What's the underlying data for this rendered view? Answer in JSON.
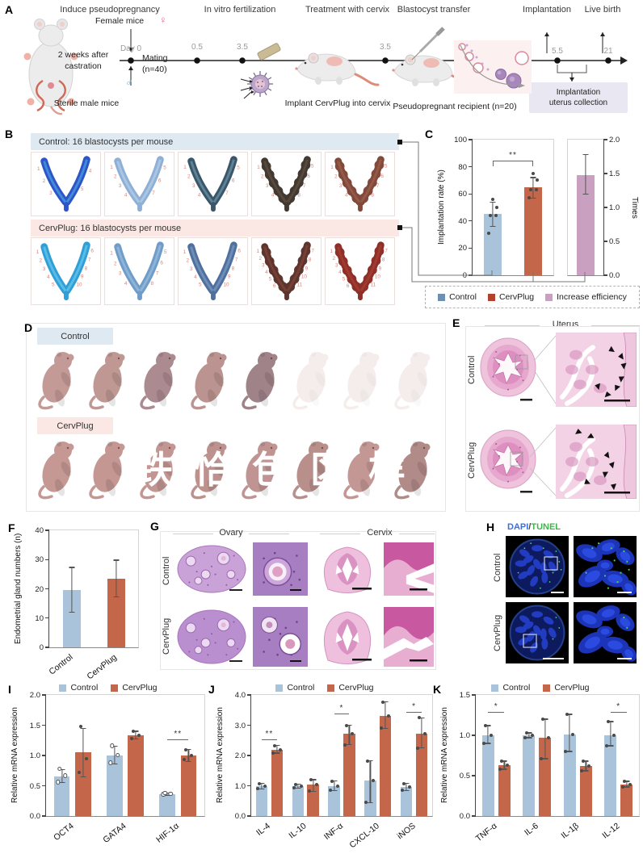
{
  "panelA": {
    "label": "A",
    "stages": [
      "Induce pseudopregnancy",
      "In vitro fertilization",
      "Treatment with cervix",
      "Blastocyst transfer",
      "Implantation",
      "Live birth"
    ],
    "timeline_ticks": [
      "Day 0",
      "0.5",
      "3.5",
      "3.5",
      "5.5",
      "21"
    ],
    "female_mice": "Female mice",
    "female_symbol": "♀",
    "male_symbol": "♂",
    "castration_line1": "2 weeks after",
    "castration_line2": "castration",
    "mating_line1": "Mating",
    "mating_line2": "(n=40)",
    "sterile_male": "Sterile male mice",
    "implant_caption": "Implant CervPlug into cervix",
    "recipient_caption": "Pseudopregnant recipient (n=20)",
    "collection_line1": "Implantation",
    "collection_line2": "uterus collection"
  },
  "panelB": {
    "label": "B",
    "control_header": "Control: 16 blastocysts per mouse",
    "cervplug_header": "CervPlug: 16 blastocysts per mouse",
    "control_site_counts": [
      5,
      7,
      7,
      8,
      8
    ],
    "cervplug_site_counts": [
      10,
      8,
      10,
      11,
      11
    ],
    "site_number_color": "#d9837b"
  },
  "panelC": {
    "label": "C",
    "legend": [
      {
        "label": "Control",
        "color": "#6d8fb0"
      },
      {
        "label": "CervPlug",
        "color": "#b4412e"
      },
      {
        "label": "Increase efficiency",
        "color": "#c9a0c0"
      }
    ]
  },
  "panelD": {
    "label": "D",
    "control_label": "Control",
    "cervplug_label": "CervPlug",
    "control_pups_visible": 5,
    "control_pups_faded": 3,
    "cervplug_pups_visible": 8,
    "watermark": "跌恰包区样"
  },
  "panelE": {
    "label": "E",
    "title": "Uterus",
    "rows": [
      "Control",
      "CervPlug"
    ]
  },
  "panelF": {
    "label": "F"
  },
  "panelG": {
    "label": "G",
    "columns": [
      "Ovary",
      "Cervix"
    ],
    "rows": [
      "Control",
      "CervPlug"
    ]
  },
  "panelH": {
    "label": "H",
    "stain1": "DAPI",
    "separator": "/",
    "stain2": "TUNEL",
    "stain1_color": "#3b6fe0",
    "stain2_color": "#3cb54a",
    "rows": [
      "Control",
      "CervPlug"
    ]
  },
  "panelI": {
    "label": "I"
  },
  "panelJ": {
    "label": "J"
  },
  "panelK": {
    "label": "K"
  },
  "colors": {
    "control_bar": "#a9c3da",
    "cervplug_bar": "#c4664a",
    "increase_bar": "#c9a0c0",
    "control_band": "#dfe9f2",
    "cervplug_band": "#fbe8e4"
  },
  "chart_data": [
    {
      "id": "c-rate",
      "type": "bar",
      "ylabel": "Implantation rate (%)",
      "ylim": [
        0,
        100
      ],
      "yticks": [
        "0",
        "20",
        "40",
        "60",
        "80",
        "100"
      ],
      "categories": [
        "Control",
        "CervPlug"
      ],
      "show_xlabels": false,
      "series": [
        {
          "name": "Implantation rate",
          "colors": [
            "#a9c3da",
            "#c4664a"
          ],
          "values": [
            45,
            65
          ],
          "errors": [
            [
              36,
              54
            ],
            [
              57,
              72
            ]
          ],
          "points": [
            [
              31,
              44,
              44,
              50,
              56
            ],
            [
              57,
              63,
              63,
              70,
              75
            ]
          ]
        }
      ],
      "sig": [
        {
          "between": [
            0,
            1
          ],
          "label": "**",
          "y": 84
        }
      ]
    },
    {
      "id": "c-times",
      "type": "bar",
      "axis": "right",
      "ylabel": "Times",
      "ylim": [
        0,
        2
      ],
      "yticks": [
        "0.0",
        "0.5",
        "1.0",
        "1.5",
        "2.0"
      ],
      "categories": [
        "Increase efficiency"
      ],
      "show_xlabels": false,
      "series": [
        {
          "name": "Increase efficiency",
          "colors": [
            "#c9a0c0"
          ],
          "values": [
            1.48
          ],
          "errors": [
            [
              1.2,
              1.78
            ]
          ],
          "points": [
            []
          ]
        }
      ]
    },
    {
      "id": "f-glands",
      "type": "bar",
      "ylabel": "Endometrial gland numbers (n)",
      "ylim": [
        0,
        40
      ],
      "yticks": [
        "0",
        "10",
        "20",
        "30",
        "40"
      ],
      "categories": [
        "Control",
        "CervPlug"
      ],
      "series": [
        {
          "name": "Gland numbers",
          "colors": [
            "#a9c3da",
            "#c4664a"
          ],
          "values": [
            19.5,
            23.5
          ],
          "errors": [
            [
              12,
              27.3
            ],
            [
              17.3,
              29.8
            ]
          ],
          "points": [
            [],
            []
          ]
        }
      ]
    },
    {
      "id": "i-mrna",
      "type": "bar",
      "ylabel": "Relative mRNA expression",
      "ylim": [
        0,
        2
      ],
      "yticks": [
        "0.0",
        "0.5",
        "1.0",
        "1.5",
        "2.0"
      ],
      "categories": [
        "OCT4",
        "GATA4",
        "HIF-1α"
      ],
      "legend": [
        {
          "label": "Control",
          "color": "#a9c3da"
        },
        {
          "label": "CervPlug",
          "color": "#c4664a"
        }
      ],
      "series": [
        {
          "name": "Control",
          "color": "#a9c3da",
          "open": true,
          "values": [
            0.66,
            1.0,
            0.36
          ],
          "errors": [
            [
              0.55,
              0.77
            ],
            [
              0.86,
              1.15
            ],
            [
              0.34,
              0.38
            ]
          ],
          "points": [
            [
              0.55,
              0.66,
              0.77
            ],
            [
              0.87,
              1.0,
              1.15
            ],
            [
              0.35,
              0.36,
              0.37
            ]
          ]
        },
        {
          "name": "CervPlug",
          "color": "#c4664a",
          "values": [
            1.05,
            1.33,
            1.0
          ],
          "errors": [
            [
              0.65,
              1.45
            ],
            [
              1.27,
              1.4
            ],
            [
              0.9,
              1.1
            ]
          ],
          "points": [
            [
              0.72,
              0.95,
              1.48
            ],
            [
              1.28,
              1.33,
              1.4
            ],
            [
              0.93,
              1.0,
              1.09
            ]
          ]
        }
      ],
      "sig": [
        {
          "cat": 2,
          "label": "**",
          "y": 1.25
        }
      ]
    },
    {
      "id": "j-mrna",
      "type": "bar",
      "ylabel": "Relative mRNA expression",
      "ylim": [
        0,
        4
      ],
      "yticks": [
        "0.0",
        "1.0",
        "2.0",
        "3.0",
        "4.0"
      ],
      "categories": [
        "IL-4",
        "IL-10",
        "INF-α",
        "CXCL-10",
        "iNOS"
      ],
      "legend": [
        {
          "label": "Control",
          "color": "#a9c3da"
        },
        {
          "label": "CervPlug",
          "color": "#c4664a"
        }
      ],
      "series": [
        {
          "name": "Control",
          "color": "#a9c3da",
          "values": [
            1.0,
            1.0,
            1.0,
            1.17,
            0.97
          ],
          "errors": [
            [
              0.9,
              1.08
            ],
            [
              0.93,
              1.05
            ],
            [
              0.85,
              1.15
            ],
            [
              0.45,
              1.82
            ],
            [
              0.85,
              1.08
            ]
          ],
          "points": [
            [
              0.9,
              1.0,
              1.08
            ],
            [
              0.93,
              1.0,
              1.05
            ],
            [
              0.85,
              1.0,
              1.15
            ],
            [
              0.45,
              1.17,
              1.82
            ],
            [
              0.85,
              0.97,
              1.08
            ]
          ]
        },
        {
          "name": "CervPlug",
          "color": "#c4664a",
          "values": [
            2.2,
            1.03,
            2.72,
            3.3,
            2.72
          ],
          "errors": [
            [
              2.08,
              2.33
            ],
            [
              0.82,
              1.2
            ],
            [
              2.35,
              3.0
            ],
            [
              2.9,
              3.77
            ],
            [
              2.25,
              3.25
            ]
          ],
          "points": [
            [
              2.08,
              2.2,
              2.33
            ],
            [
              0.82,
              1.03,
              1.2
            ],
            [
              2.35,
              2.72,
              3.0
            ],
            [
              2.9,
              3.3,
              3.77
            ],
            [
              2.25,
              2.72,
              3.25
            ]
          ]
        }
      ],
      "sig": [
        {
          "cat": 0,
          "label": "**",
          "y": 2.5
        },
        {
          "cat": 2,
          "label": "*",
          "y": 3.35
        },
        {
          "cat": 4,
          "label": "*",
          "y": 3.42
        }
      ]
    },
    {
      "id": "k-mrna",
      "type": "bar",
      "ylabel": "Relative mRNA expression",
      "ylim": [
        0,
        1.5
      ],
      "yticks": [
        "0.0",
        "0.5",
        "1.0",
        "1.5"
      ],
      "categories": [
        "TNF-α",
        "IL-6",
        "IL-1β",
        "IL-12"
      ],
      "legend": [
        {
          "label": "Control",
          "color": "#a9c3da"
        },
        {
          "label": "CervPlug",
          "color": "#c4664a"
        }
      ],
      "series": [
        {
          "name": "Control",
          "color": "#a9c3da",
          "values": [
            1.0,
            1.0,
            1.01,
            1.0
          ],
          "errors": [
            [
              0.9,
              1.12
            ],
            [
              0.97,
              1.03
            ],
            [
              0.8,
              1.26
            ],
            [
              0.87,
              1.17
            ]
          ],
          "points": [
            [
              0.9,
              1.0,
              1.12
            ],
            [
              0.97,
              1.0,
              1.03
            ],
            [
              0.8,
              1.01,
              1.26
            ],
            [
              0.87,
              1.0,
              1.17
            ]
          ]
        },
        {
          "name": "CervPlug",
          "color": "#c4664a",
          "values": [
            0.63,
            0.97,
            0.62,
            0.39
          ],
          "errors": [
            [
              0.58,
              0.68
            ],
            [
              0.71,
              1.2
            ],
            [
              0.56,
              0.68
            ],
            [
              0.36,
              0.43
            ]
          ],
          "points": [
            [
              0.58,
              0.63,
              0.68
            ],
            [
              0.71,
              0.97,
              1.2
            ],
            [
              0.56,
              0.62,
              0.68
            ],
            [
              0.36,
              0.39,
              0.43
            ]
          ]
        }
      ],
      "sig": [
        {
          "cat": 0,
          "label": "*",
          "y": 1.28
        },
        {
          "cat": 3,
          "label": "*",
          "y": 1.28
        }
      ]
    }
  ]
}
